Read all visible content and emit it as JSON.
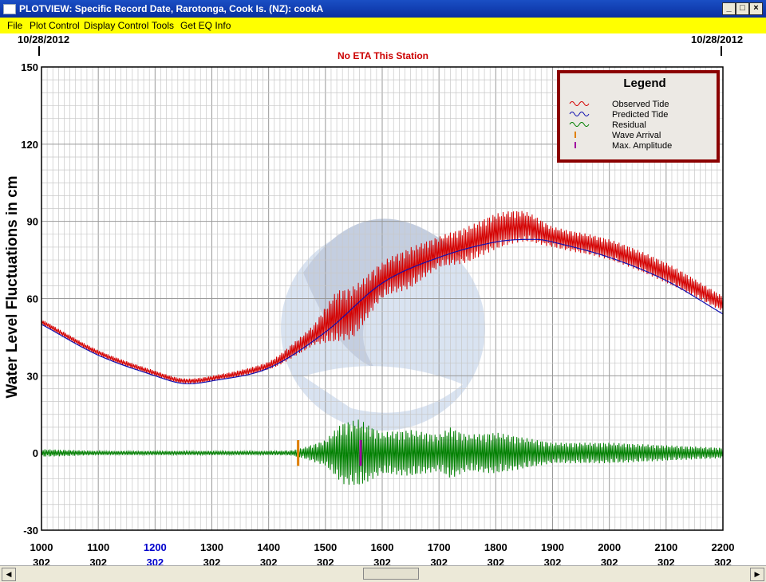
{
  "window": {
    "title": "PLOTVIEW: Specific Record Date, Rarotonga, Cook Is. (NZ): cookA",
    "minimize": "_",
    "maximize": "□",
    "close": "×"
  },
  "menu": [
    "File",
    "Plot Control",
    "Display Control",
    "Tools",
    "Get EQ Info"
  ],
  "chart_data": {
    "type": "line",
    "date_left": "10/28/2012",
    "date_right": "10/28/2012",
    "eta_note": "No ETA This Station",
    "ylabel": "Water Level Fluctuations in cm",
    "ylim": [
      -30,
      150
    ],
    "yticks": [
      "150",
      "120",
      "90",
      "60",
      "30",
      "0",
      "-30"
    ],
    "xlim": [
      1000,
      2200
    ],
    "xticks": [
      {
        "time": "1000",
        "day": "302",
        "highlight": false
      },
      {
        "time": "1100",
        "day": "302",
        "highlight": false
      },
      {
        "time": "1200",
        "day": "302",
        "highlight": true
      },
      {
        "time": "1300",
        "day": "302",
        "highlight": false
      },
      {
        "time": "1400",
        "day": "302",
        "highlight": false
      },
      {
        "time": "1500",
        "day": "302",
        "highlight": false
      },
      {
        "time": "1600",
        "day": "302",
        "highlight": false
      },
      {
        "time": "1700",
        "day": "302",
        "highlight": false
      },
      {
        "time": "1800",
        "day": "302",
        "highlight": false
      },
      {
        "time": "1900",
        "day": "302",
        "highlight": false
      },
      {
        "time": "2000",
        "day": "302",
        "highlight": false
      },
      {
        "time": "2100",
        "day": "302",
        "highlight": false
      },
      {
        "time": "2200",
        "day": "302",
        "highlight": false
      }
    ],
    "grid": true,
    "legend": {
      "title": "Legend",
      "placement": "top-right",
      "entries": [
        "Observed Tide",
        "Predicted Tide",
        "Residual",
        "Wave Arrival",
        "Max. Amplitude"
      ]
    },
    "colors": {
      "observed": "#d40000",
      "predicted": "#1010b0",
      "residual": "#008000",
      "wave_arrival": "#e08000",
      "max_amplitude": "#a000a0",
      "legend_border": "#8b0000",
      "eta_text": "#cc0000",
      "highlight_tick": "#0000cc"
    },
    "series": [
      {
        "name": "Predicted Tide",
        "x": [
          1000,
          1100,
          1200,
          1250,
          1300,
          1400,
          1500,
          1600,
          1700,
          1800,
          1870,
          1900,
          2000,
          2100,
          2200
        ],
        "values": [
          50,
          38,
          30,
          27,
          28,
          33,
          47,
          66,
          76,
          82,
          83,
          82,
          76,
          67,
          54
        ]
      },
      {
        "name": "Observed Tide",
        "x": [
          1000,
          1100,
          1200,
          1250,
          1300,
          1400,
          1450,
          1480,
          1520,
          1550,
          1600,
          1650,
          1700,
          1750,
          1800,
          1850,
          1900,
          2000,
          2100,
          2200
        ],
        "values": [
          51,
          39,
          31,
          28,
          29,
          34,
          41,
          46,
          53,
          55,
          67,
          72,
          78,
          81,
          86,
          88,
          84,
          79,
          70,
          58
        ],
        "amplitude": [
          1,
          1,
          1,
          1,
          1,
          1.5,
          3,
          4,
          10,
          10,
          7,
          8,
          6,
          7,
          7,
          6,
          4,
          4,
          4,
          3
        ]
      },
      {
        "name": "Residual",
        "x": [
          1000,
          1100,
          1200,
          1300,
          1400,
          1440,
          1460,
          1500,
          1530,
          1560,
          1600,
          1650,
          1700,
          1720,
          1750,
          1800,
          1850,
          1900,
          2000,
          2100,
          2200
        ],
        "values": [
          0,
          0,
          0,
          0,
          0,
          0,
          0,
          0,
          0,
          0,
          0,
          0,
          0,
          0,
          0,
          0,
          0,
          0,
          0,
          0,
          0
        ],
        "amplitude": [
          1.5,
          0.8,
          0.8,
          0.8,
          0.8,
          1,
          2,
          5,
          12,
          13,
          8,
          9,
          7,
          10,
          7,
          8,
          6,
          4,
          4,
          3,
          2
        ]
      }
    ],
    "markers": [
      {
        "name": "Wave Arrival",
        "x": 1452,
        "y_range": [
          -5,
          5
        ]
      },
      {
        "name": "Max. Amplitude",
        "x": 1562,
        "y_range": [
          -5,
          5
        ]
      }
    ]
  }
}
